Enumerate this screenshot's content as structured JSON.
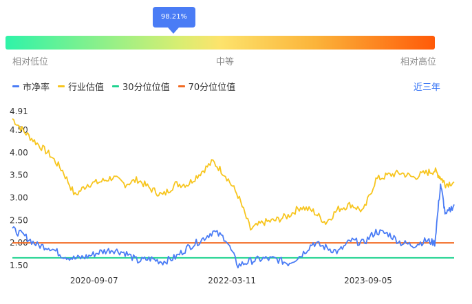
{
  "indicator": {
    "percentile_label": "98.21%",
    "percentile": 0.9821,
    "scale": {
      "low": "相对低位",
      "mid": "中等",
      "high": "相对高位"
    },
    "gradient_colors": [
      "#2ff3a8",
      "#d6ee72",
      "#fde36c",
      "#fbb43a",
      "#ff5a08"
    ]
  },
  "period_label": "近三年",
  "chart_data": {
    "type": "line",
    "ylim": [
      1.5,
      4.91
    ],
    "y_ticks": [
      "4.91",
      "4.50",
      "4.00",
      "3.50",
      "3.00",
      "2.50",
      "2.00",
      "1.50"
    ],
    "y_tick_values": [
      4.91,
      4.5,
      4.0,
      3.5,
      3.0,
      2.5,
      2.0,
      1.5
    ],
    "x_ticks": [
      "2020-09-07",
      "2022-03-11",
      "2023-09-05"
    ],
    "x_range": [
      "2019-10-17",
      "2024-08-13"
    ],
    "legend_position": "top-left",
    "grid": false,
    "series": [
      {
        "name": "市净率",
        "color": "#4a7cf5",
        "x": [
          "2019-10-17",
          "2019-12-05",
          "2020-01-24",
          "2020-03-15",
          "2020-05-04",
          "2020-06-23",
          "2020-08-12",
          "2020-10-01",
          "2020-11-20",
          "2021-01-09",
          "2021-02-28",
          "2021-04-19",
          "2021-06-08",
          "2021-07-28",
          "2021-09-16",
          "2021-11-05",
          "2021-12-25",
          "2022-02-13",
          "2022-04-04",
          "2022-05-24",
          "2022-07-13",
          "2022-09-01",
          "2022-10-21",
          "2022-12-10",
          "2023-01-29",
          "2023-03-20",
          "2023-05-09",
          "2023-06-28",
          "2023-08-17",
          "2023-10-06",
          "2023-11-25",
          "2024-01-14",
          "2024-03-04",
          "2024-04-23",
          "2024-05-28",
          "2024-06-20",
          "2024-07-10",
          "2024-08-13"
        ],
        "values": [
          2.3,
          2.15,
          1.95,
          1.9,
          1.72,
          1.65,
          1.7,
          1.8,
          1.85,
          1.78,
          1.6,
          1.65,
          1.58,
          1.68,
          1.9,
          2.05,
          2.25,
          2.1,
          1.5,
          1.6,
          1.65,
          1.64,
          1.55,
          1.72,
          2.0,
          1.9,
          1.8,
          2.05,
          2.0,
          2.25,
          2.2,
          2.0,
          1.95,
          2.05,
          2.0,
          3.3,
          2.6,
          2.85
        ]
      },
      {
        "name": "行业估值",
        "color": "#f7c51e",
        "x": [
          "2019-10-17",
          "2019-12-05",
          "2020-01-24",
          "2020-03-15",
          "2020-05-04",
          "2020-06-23",
          "2020-08-12",
          "2020-10-01",
          "2020-11-20",
          "2021-01-09",
          "2021-02-28",
          "2021-04-19",
          "2021-06-08",
          "2021-07-28",
          "2021-09-16",
          "2021-11-05",
          "2021-12-25",
          "2022-02-13",
          "2022-04-04",
          "2022-05-24",
          "2022-07-13",
          "2022-09-01",
          "2022-10-21",
          "2022-12-10",
          "2023-01-29",
          "2023-03-20",
          "2023-05-09",
          "2023-06-28",
          "2023-08-17",
          "2023-10-06",
          "2023-11-25",
          "2024-01-14",
          "2024-03-04",
          "2024-04-23",
          "2024-05-28",
          "2024-06-20",
          "2024-07-10",
          "2024-08-13"
        ],
        "values": [
          4.75,
          4.45,
          4.2,
          3.95,
          3.6,
          3.05,
          3.3,
          3.35,
          3.45,
          3.3,
          3.4,
          3.2,
          3.05,
          3.3,
          3.3,
          3.55,
          3.8,
          3.5,
          3.05,
          2.3,
          2.45,
          2.5,
          2.6,
          2.8,
          2.7,
          2.45,
          2.75,
          2.85,
          2.7,
          3.4,
          3.5,
          3.55,
          3.45,
          3.55,
          3.6,
          3.45,
          3.3,
          3.35
        ]
      },
      {
        "name": "30分位位值",
        "color": "#1fd38f",
        "x": [
          "2019-10-17",
          "2024-08-13"
        ],
        "values": [
          1.67,
          1.67
        ]
      },
      {
        "name": "70分位位值",
        "color": "#f26a22",
        "x": [
          "2019-10-17",
          "2024-08-13"
        ],
        "values": [
          2.0,
          2.0
        ]
      }
    ]
  }
}
